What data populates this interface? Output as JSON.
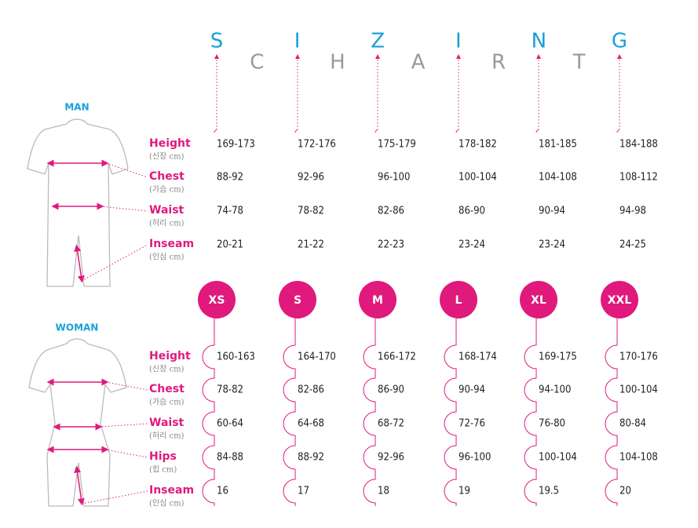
{
  "title": {
    "top_letters": [
      "S",
      "I",
      "Z",
      "I",
      "N",
      "G"
    ],
    "bottom_letters": [
      "C",
      "H",
      "A",
      "R",
      "T"
    ]
  },
  "sizes": [
    "XS",
    "S",
    "M",
    "L",
    "XL",
    "XXL"
  ],
  "man": {
    "label": "MAN",
    "measures": [
      {
        "name": "Height",
        "unit": "(신장 cm)"
      },
      {
        "name": "Chest",
        "unit": "(가슴 cm)"
      },
      {
        "name": "Waist",
        "unit": "(허리 cm)"
      },
      {
        "name": "Inseam",
        "unit": "(인심 cm)"
      }
    ],
    "rows": [
      [
        "169-173",
        "172-176",
        "175-179",
        "178-182",
        "181-185",
        "184-188"
      ],
      [
        "88-92",
        "92-96",
        "96-100",
        "100-104",
        "104-108",
        "108-112"
      ],
      [
        "74-78",
        "78-82",
        "82-86",
        "86-90",
        "90-94",
        "94-98"
      ],
      [
        "20-21",
        "21-22",
        "22-23",
        "23-24",
        "23-24",
        "24-25"
      ]
    ]
  },
  "woman": {
    "label": "WOMAN",
    "measures": [
      {
        "name": "Height",
        "unit": "(신장 cm)"
      },
      {
        "name": "Chest",
        "unit": "(가슴 cm)"
      },
      {
        "name": "Waist",
        "unit": "(허리 cm)"
      },
      {
        "name": "Hips",
        "unit": "(힙 cm)"
      },
      {
        "name": "Inseam",
        "unit": "(인심 cm)"
      }
    ],
    "rows": [
      [
        "160-163",
        "164-170",
        "166-172",
        "168-174",
        "169-175",
        "170-176"
      ],
      [
        "78-82",
        "82-86",
        "86-90",
        "90-94",
        "94-100",
        "100-104"
      ],
      [
        "60-64",
        "64-68",
        "68-72",
        "72-76",
        "76-80",
        "80-84"
      ],
      [
        "84-88",
        "88-92",
        "92-96",
        "96-100",
        "100-104",
        "104-108"
      ],
      [
        "16",
        "17",
        "18",
        "19",
        "19.5",
        "20"
      ]
    ]
  }
}
